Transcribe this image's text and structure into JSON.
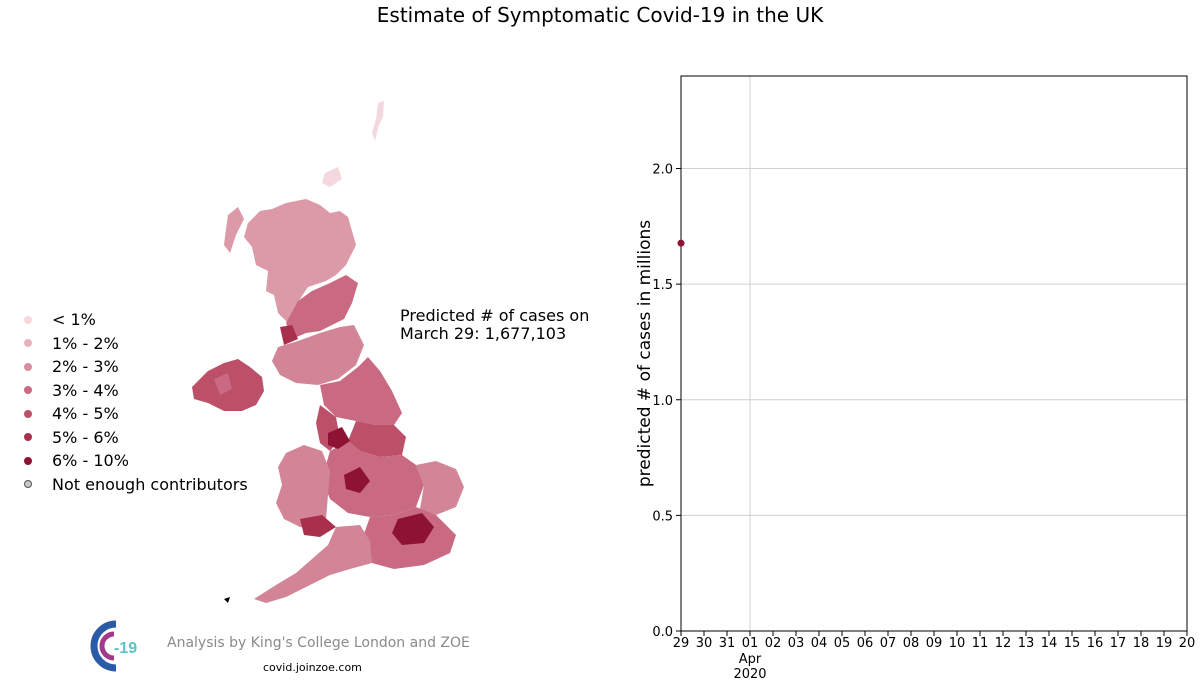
{
  "title": "Estimate of Symptomatic Covid-19 in the UK",
  "legend": [
    {
      "label": "< 1%",
      "color": "#f4d8de"
    },
    {
      "label": "1% - 2%",
      "color": "#e6b2be"
    },
    {
      "label": "2% - 3%",
      "color": "#d98f9f"
    },
    {
      "label": "3% - 4%",
      "color": "#c96a82"
    },
    {
      "label": "4% - 5%",
      "color": "#bb5068"
    },
    {
      "label": "5% - 6%",
      "color": "#a8304c"
    },
    {
      "label": "6% - 10%",
      "color": "#8e1233"
    },
    {
      "label": "Not enough contributors",
      "color": "#c8c8c8"
    }
  ],
  "prediction": {
    "line1": "Predicted # of cases on",
    "line2": "March 29: 1,677,103"
  },
  "footer": {
    "logo_text": "-19",
    "credit": "Analysis by King's College London and ZOE",
    "site": "covid.joinzoe.com"
  },
  "chart_data": {
    "type": "scatter",
    "ylabel": "predicted # of cases in millions",
    "xlabel": "",
    "ylim": [
      0.0,
      2.4
    ],
    "yticks": [
      "0.0",
      "0.5",
      "1.0",
      "1.5",
      "2.0"
    ],
    "ytick_values": [
      0.0,
      0.5,
      1.0,
      1.5,
      2.0
    ],
    "xticks": [
      "29",
      "30",
      "31",
      "01",
      "02",
      "03",
      "04",
      "05",
      "06",
      "07",
      "08",
      "09",
      "10",
      "11",
      "12",
      "13",
      "14",
      "15",
      "16",
      "17",
      "18",
      "19",
      "20"
    ],
    "xtick_sublabels": {
      "01": [
        "Apr",
        "2020"
      ]
    },
    "grid": true,
    "points": [
      {
        "x": "2020-03-29",
        "y": 1.677103
      }
    ],
    "point_color": "#8e1233"
  }
}
